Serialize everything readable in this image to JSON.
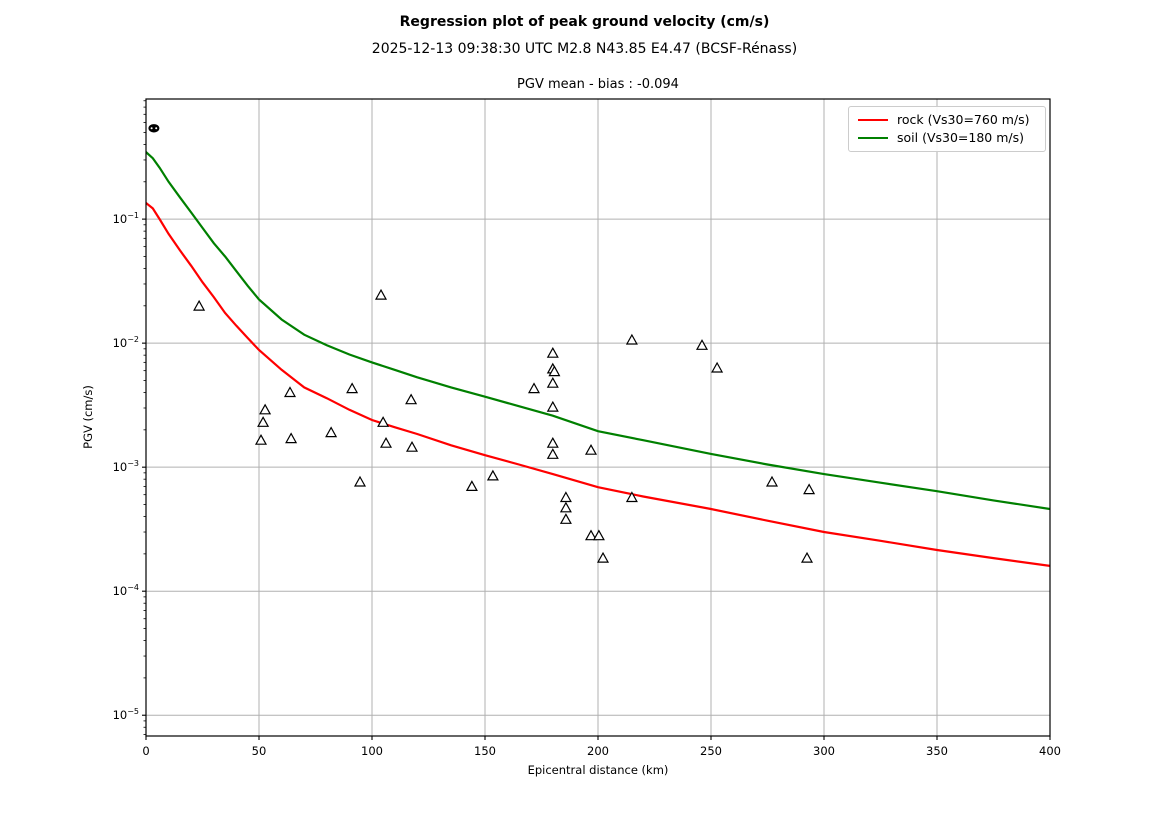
{
  "chart_data": {
    "type": "scatter",
    "title": "Regression plot of peak ground velocity (cm/s)",
    "subtitle": "2025-12-13 09:38:30 UTC M2.8 N43.85 E4.47 (BCSF-Rénass)",
    "axes_title": "PGV mean - bias : -0.094",
    "xlabel": "Epicentral distance (km)",
    "ylabel": "PGV (cm/s)",
    "xlim": [
      0,
      400
    ],
    "x_ticks": [
      0,
      50,
      100,
      150,
      200,
      250,
      300,
      350,
      400
    ],
    "y_scale": "log",
    "ylim": [
      6.8e-06,
      0.93
    ],
    "y_tick_exponents": [
      -1,
      -2,
      -3,
      -4,
      -5
    ],
    "grid": true,
    "grid_color": "#b0b0b0",
    "legend_position": "upper right",
    "legend": [
      {
        "label": "rock (Vs30=760 m/s)",
        "color": "#ff0000"
      },
      {
        "label": "soil (Vs30=180 m/s)",
        "color": "#008000"
      }
    ],
    "series": [
      {
        "name": "rock (Vs30=760 m/s)",
        "type": "line",
        "color": "#ff0000",
        "points": [
          [
            0,
            0.135
          ],
          [
            3,
            0.122
          ],
          [
            6,
            0.1
          ],
          [
            10,
            0.076
          ],
          [
            15,
            0.056
          ],
          [
            20,
            0.042
          ],
          [
            25,
            0.031
          ],
          [
            30,
            0.0235
          ],
          [
            35,
            0.0175
          ],
          [
            40,
            0.0138
          ],
          [
            45,
            0.011
          ],
          [
            50,
            0.0088
          ],
          [
            60,
            0.0061
          ],
          [
            70,
            0.0044
          ],
          [
            80,
            0.0036
          ],
          [
            90,
            0.0029
          ],
          [
            100,
            0.0024
          ],
          [
            110,
            0.0021
          ],
          [
            120,
            0.00185
          ],
          [
            135,
            0.0015
          ],
          [
            150,
            0.00125
          ],
          [
            165,
            0.00105
          ],
          [
            180,
            0.00088
          ],
          [
            200,
            0.00069
          ],
          [
            220,
            0.00058
          ],
          [
            250,
            0.00046
          ],
          [
            275,
            0.00037
          ],
          [
            300,
            0.0003
          ],
          [
            325,
            0.000255
          ],
          [
            350,
            0.000215
          ],
          [
            375,
            0.000185
          ],
          [
            400,
            0.00016
          ]
        ]
      },
      {
        "name": "soil (Vs30=180 m/s)",
        "type": "line",
        "color": "#008000",
        "points": [
          [
            0,
            0.347
          ],
          [
            3,
            0.31
          ],
          [
            6,
            0.26
          ],
          [
            10,
            0.2
          ],
          [
            15,
            0.15
          ],
          [
            20,
            0.113
          ],
          [
            25,
            0.085
          ],
          [
            30,
            0.064
          ],
          [
            35,
            0.05
          ],
          [
            40,
            0.038
          ],
          [
            45,
            0.029
          ],
          [
            50,
            0.0225
          ],
          [
            60,
            0.0155
          ],
          [
            70,
            0.0117
          ],
          [
            80,
            0.0096
          ],
          [
            90,
            0.0081
          ],
          [
            100,
            0.007
          ],
          [
            110,
            0.0061
          ],
          [
            120,
            0.0053
          ],
          [
            135,
            0.0044
          ],
          [
            150,
            0.0037
          ],
          [
            165,
            0.0031
          ],
          [
            180,
            0.0026
          ],
          [
            200,
            0.00195
          ],
          [
            220,
            0.00165
          ],
          [
            250,
            0.00128
          ],
          [
            275,
            0.00105
          ],
          [
            300,
            0.00088
          ],
          [
            325,
            0.00075
          ],
          [
            350,
            0.00064
          ],
          [
            375,
            0.00054
          ],
          [
            400,
            0.00046
          ]
        ]
      },
      {
        "name": "station PGV observations",
        "type": "scatter",
        "marker": "triangle-up",
        "edge_color": "#000000",
        "face_color": "#ffffff",
        "points": [
          [
            23.5,
            0.0199
          ],
          [
            104,
            0.0244
          ],
          [
            50.9,
            0.00165
          ],
          [
            51.8,
            0.0023
          ],
          [
            52.7,
            0.0029
          ],
          [
            63.7,
            0.004
          ],
          [
            64.2,
            0.0017
          ],
          [
            81.9,
            0.0019
          ],
          [
            91.2,
            0.0043
          ],
          [
            94.7,
            0.00076
          ],
          [
            104.9,
            0.0023
          ],
          [
            106.2,
            0.00156
          ],
          [
            117.3,
            0.0035
          ],
          [
            117.7,
            0.00145
          ],
          [
            144.2,
            0.0007
          ],
          [
            153.5,
            0.00085
          ],
          [
            171.7,
            0.0043
          ],
          [
            180,
            0.0083
          ],
          [
            180,
            0.0062
          ],
          [
            180.7,
            0.0059
          ],
          [
            180,
            0.00475
          ],
          [
            180,
            0.00305
          ],
          [
            180,
            0.00156
          ],
          [
            180,
            0.00127
          ],
          [
            185.8,
            0.00057
          ],
          [
            185.8,
            0.00047
          ],
          [
            185.8,
            0.00038
          ],
          [
            196.9,
            0.00137
          ],
          [
            196.9,
            0.00028
          ],
          [
            200.4,
            0.00028
          ],
          [
            202.2,
            0.000185
          ],
          [
            215,
            0.0106
          ],
          [
            215,
            0.00057
          ],
          [
            246,
            0.0096
          ],
          [
            252.7,
            0.0063
          ],
          [
            277,
            0.00076
          ],
          [
            293.4,
            0.00066
          ],
          [
            292.5,
            0.000185
          ]
        ]
      },
      {
        "name": "epicenter marker",
        "type": "scatter",
        "marker": "filled-ellipse",
        "color": "#000000",
        "points": [
          [
            3.5,
            0.54
          ]
        ]
      }
    ]
  }
}
